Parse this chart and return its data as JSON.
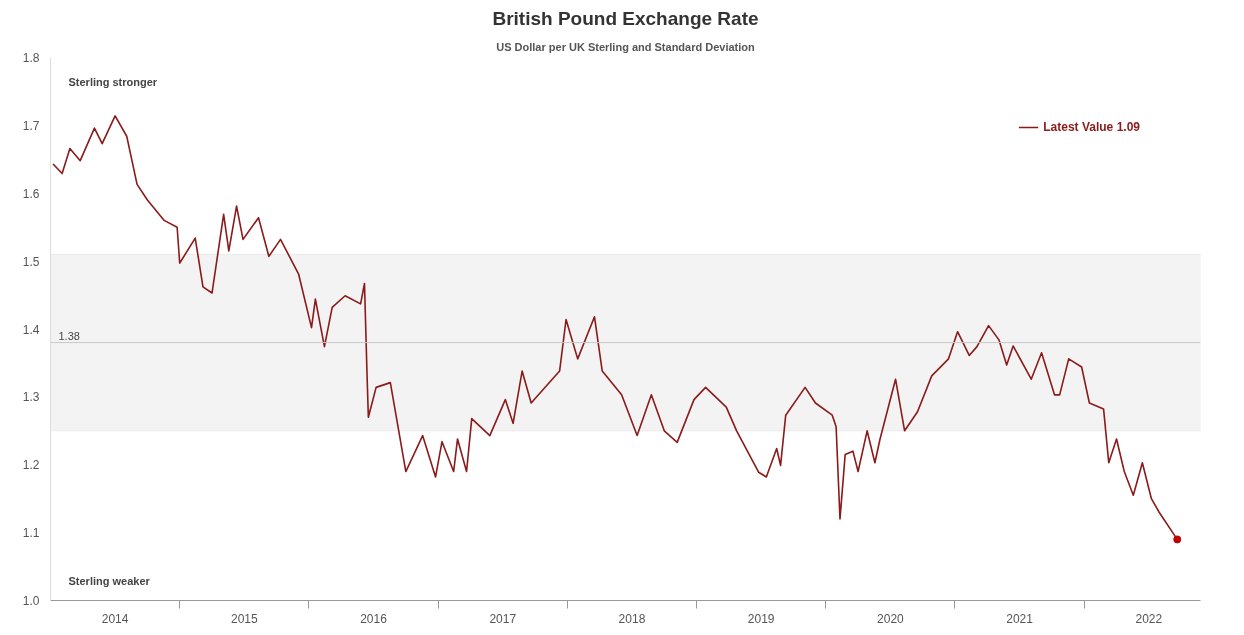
{
  "chart_data": {
    "type": "line",
    "title": "British Pound Exchange Rate",
    "subtitle": "US Dollar per UK Sterling and Standard Deviation",
    "annotations": [
      "Sterling stronger",
      "Sterling weaker"
    ],
    "xlim": [
      2014.0,
      2022.9
    ],
    "xticks": [
      {
        "value": 2014.5,
        "label": "2014"
      },
      {
        "value": 2015,
        "label": null
      },
      {
        "value": 2015.5,
        "label": "2015"
      },
      {
        "value": 2016,
        "label": null
      },
      {
        "value": 2016.5,
        "label": "2016"
      },
      {
        "value": 2017,
        "label": null
      },
      {
        "value": 2017.5,
        "label": "2017"
      },
      {
        "value": 2018,
        "label": null
      },
      {
        "value": 2018.5,
        "label": "2018"
      },
      {
        "value": 2019,
        "label": null
      },
      {
        "value": 2019.5,
        "label": "2019"
      },
      {
        "value": 2020,
        "label": null
      },
      {
        "value": 2020.5,
        "label": "2020"
      },
      {
        "value": 2021,
        "label": null
      },
      {
        "value": 2021.5,
        "label": "2021"
      },
      {
        "value": 2022,
        "label": null
      },
      {
        "value": 2022.5,
        "label": "2022"
      }
    ],
    "ylim": [
      1.0,
      1.8
    ],
    "yticks": [
      {
        "value": 1.0,
        "label": "1.0"
      },
      1.1,
      1.2,
      1.3,
      1.4,
      1.5,
      1.6,
      1.7,
      1.8
    ],
    "ref_lines": [
      {
        "axis": "y",
        "value": 1.38,
        "label": "1.38",
        "color": "#c8c8c8"
      }
    ],
    "bands": [
      {
        "axis": "y",
        "from": 1.25,
        "to": 1.51,
        "label": null,
        "color": "#f3f3f3"
      }
    ],
    "legend": "top right",
    "grid": false,
    "line_style": "solid",
    "series": [
      {
        "name": "Latest Value 1.09",
        "color": "#8b1a1a",
        "x": [
          2014.02,
          2014.09,
          2014.15,
          2014.23,
          2014.34,
          2014.4,
          2014.5,
          2014.59,
          2014.67,
          2014.75,
          2014.88,
          2014.98,
          2015.0,
          2015.12,
          2015.18,
          2015.25,
          2015.34,
          2015.38,
          2015.44,
          2015.49,
          2015.61,
          2015.69,
          2015.78,
          2015.92,
          2016.02,
          2016.05,
          2016.12,
          2016.18,
          2016.28,
          2016.4,
          2016.43,
          2016.45,
          2016.46,
          2016.52,
          2016.63,
          2016.75,
          2016.88,
          2016.98,
          2017.03,
          2017.12,
          2017.15,
          2017.22,
          2017.26,
          2017.4,
          2017.52,
          2017.58,
          2017.65,
          2017.72,
          2017.94,
          2017.99,
          2018.08,
          2018.21,
          2018.27,
          2018.42,
          2018.54,
          2018.65,
          2018.75,
          2018.85,
          2018.98,
          2019.07,
          2019.23,
          2019.31,
          2019.48,
          2019.54,
          2019.62,
          2019.65,
          2019.69,
          2019.84,
          2019.92,
          2020.05,
          2020.08,
          2020.11,
          2020.15,
          2020.21,
          2020.25,
          2020.32,
          2020.38,
          2020.42,
          2020.54,
          2020.61,
          2020.71,
          2020.82,
          2020.95,
          2021.02,
          2021.11,
          2021.17,
          2021.26,
          2021.34,
          2021.4,
          2021.45,
          2021.59,
          2021.67,
          2021.77,
          2021.81,
          2021.88,
          2021.98,
          2022.04,
          2022.15,
          2022.19,
          2022.25,
          2022.31,
          2022.38,
          2022.45,
          2022.52,
          2022.58,
          2022.72
        ],
        "values": [
          1.643,
          1.629,
          1.666,
          1.648,
          1.696,
          1.673,
          1.714,
          1.684,
          1.613,
          1.59,
          1.56,
          1.55,
          1.497,
          1.534,
          1.462,
          1.453,
          1.569,
          1.515,
          1.581,
          1.532,
          1.564,
          1.507,
          1.532,
          1.481,
          1.402,
          1.444,
          1.374,
          1.432,
          1.449,
          1.437,
          1.467,
          1.331,
          1.27,
          1.314,
          1.321,
          1.19,
          1.243,
          1.182,
          1.234,
          1.19,
          1.238,
          1.19,
          1.268,
          1.243,
          1.296,
          1.261,
          1.338,
          1.291,
          1.338,
          1.414,
          1.356,
          1.418,
          1.338,
          1.303,
          1.243,
          1.303,
          1.25,
          1.233,
          1.296,
          1.314,
          1.285,
          1.25,
          1.189,
          1.182,
          1.224,
          1.199,
          1.273,
          1.314,
          1.291,
          1.273,
          1.256,
          1.12,
          1.215,
          1.22,
          1.19,
          1.25,
          1.203,
          1.238,
          1.326,
          1.25,
          1.278,
          1.331,
          1.356,
          1.396,
          1.361,
          1.374,
          1.405,
          1.384,
          1.347,
          1.375,
          1.326,
          1.365,
          1.303,
          1.303,
          1.356,
          1.344,
          1.291,
          1.282,
          1.203,
          1.238,
          1.19,
          1.155,
          1.203,
          1.15,
          1.13,
          1.09
        ]
      },
      {
        "color": "#c00000",
        "type": "scatter",
        "marker": "circle",
        "x": [
          2022.72
        ],
        "values": [
          1.09
        ]
      }
    ]
  }
}
